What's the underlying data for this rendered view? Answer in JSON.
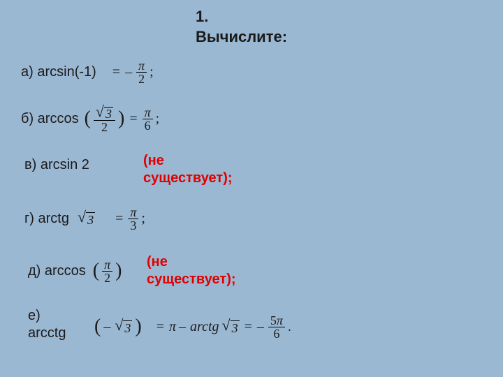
{
  "colors": {
    "background": "#9bb8d3",
    "text": "#1a1a1a",
    "red": "#e00000"
  },
  "title_line1": "1.",
  "title_line2": "Вычислите:",
  "items": {
    "a": {
      "label": "а) arcsin(-1)",
      "eq": "=",
      "neg": "–",
      "num": "π",
      "den": "2",
      "semi": ";"
    },
    "b": {
      "label": "б) arccos",
      "lp": "(",
      "rp": ")",
      "arg_num_sqrt": "3",
      "arg_den": "2",
      "eq": "=",
      "num": "π",
      "den": "6",
      "semi": ";"
    },
    "v": {
      "label": "в) arcsin 2",
      "note1": "(не",
      "note2": "существует);"
    },
    "g": {
      "label": "г) arctg",
      "sqrt_arg": "3",
      "eq": "=",
      "num": "π",
      "den": "3",
      "semi": ";"
    },
    "d": {
      "label": "д) arccos",
      "lp": "(",
      "rp": ")",
      "arg_num": "π",
      "arg_den": "2",
      "note1": "(не",
      "note2": "существует);"
    },
    "e": {
      "label1": "е)",
      "label2": "arсctg",
      "lp": "(",
      "rp": ")",
      "neg": "–",
      "sqrt_arg": "3",
      "eq1": "=",
      "pi": "π",
      "minus": "–",
      "arctg": "arctg",
      "sqrt_arg2": "3",
      "eq2": "=",
      "neg2": "–",
      "num": "5π",
      "den": "6",
      "dot": "."
    }
  }
}
